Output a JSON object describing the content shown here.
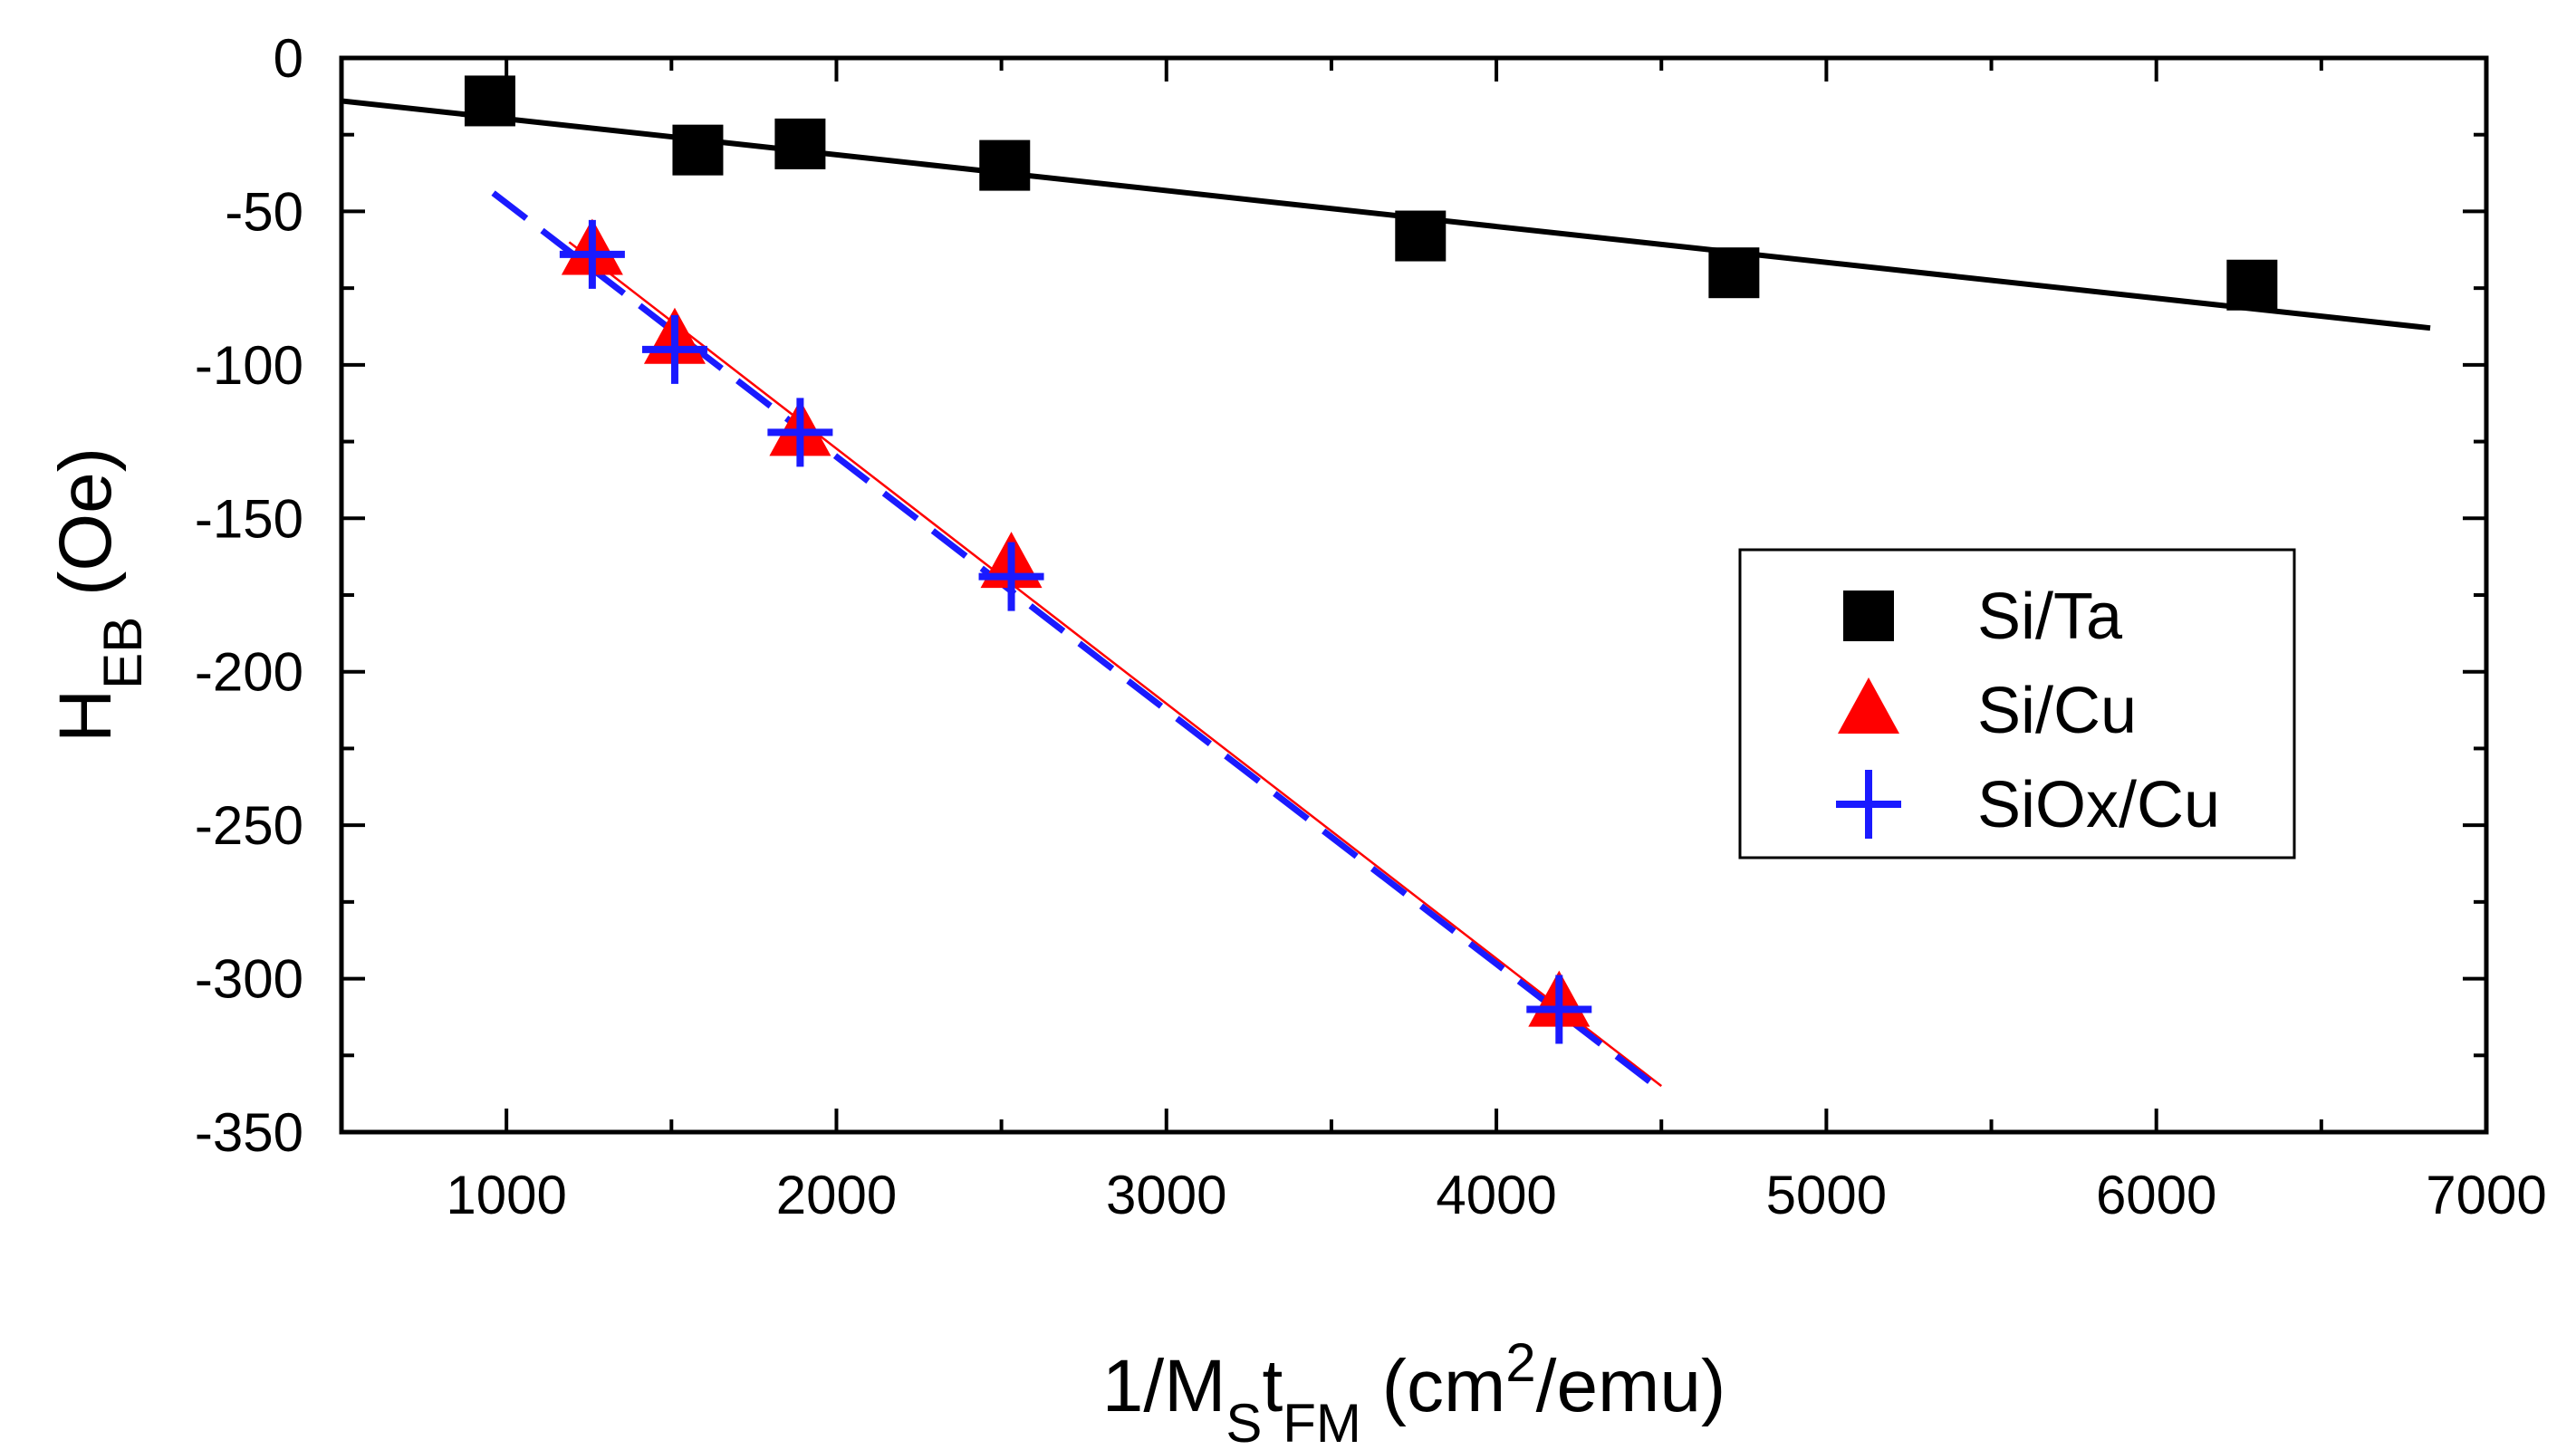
{
  "chart_data": {
    "type": "scatter",
    "title": "",
    "xlabel": {
      "parts": [
        {
          "text": "1/M",
          "style": "normal"
        },
        {
          "text": "S",
          "style": "sub"
        },
        {
          "text": "t",
          "style": "normal"
        },
        {
          "text": "FM",
          "style": "sub"
        },
        {
          "text": "  (cm",
          "style": "normal"
        },
        {
          "text": "2",
          "style": "sup"
        },
        {
          "text": "/emu)",
          "style": "normal"
        }
      ]
    },
    "ylabel": {
      "parts": [
        {
          "text": "H",
          "style": "normal"
        },
        {
          "text": "EB",
          "style": "sub"
        },
        {
          "text": " (Oe)",
          "style": "normal"
        }
      ]
    },
    "xlim": [
      500,
      7000
    ],
    "ylim": [
      -350,
      0
    ],
    "xticks": [
      1000,
      2000,
      3000,
      4000,
      5000,
      6000,
      7000
    ],
    "xminor": [
      1500,
      2500,
      3500,
      4500,
      5500,
      6500
    ],
    "yticks": [
      0,
      -50,
      -100,
      -150,
      -200,
      -250,
      -300,
      -350
    ],
    "yminor": [
      -25,
      -75,
      -125,
      -175,
      -225,
      -275,
      -325
    ],
    "legend_position": "right-center",
    "series": [
      {
        "name": "Si/Ta",
        "marker": "square",
        "color": "#000000",
        "x": [
          950,
          1580,
          1890,
          2510,
          3770,
          4720,
          6290
        ],
        "y": [
          -14,
          -30,
          -28,
          -35,
          -58,
          -70,
          -74
        ]
      },
      {
        "name": "Si/Cu",
        "marker": "triangle",
        "color": "#ff0000",
        "x": [
          1260,
          1510,
          1890,
          2530,
          4190
        ],
        "y": [
          -63,
          -92,
          -122,
          -165,
          -308
        ]
      },
      {
        "name": "SiOx/Cu",
        "marker": "plus",
        "color": "#1a1aff",
        "x": [
          1260,
          1510,
          1890,
          2530,
          4190
        ],
        "y": [
          -64,
          -95,
          -122,
          -169,
          -310
        ]
      }
    ],
    "fit_lines": [
      {
        "series": "Si/Ta",
        "color": "#000000",
        "style": "solid",
        "x": [
          500,
          6830
        ],
        "y": [
          -14,
          -88
        ]
      },
      {
        "series": "Si/Cu",
        "color": "#ff0000",
        "style": "thin",
        "x": [
          1190,
          4500
        ],
        "y": [
          -60,
          -335
        ]
      },
      {
        "series": "SiOx/Cu",
        "color": "#1a1aff",
        "style": "dashed",
        "x": [
          960,
          4470
        ],
        "y": [
          -44,
          -334
        ]
      }
    ]
  }
}
